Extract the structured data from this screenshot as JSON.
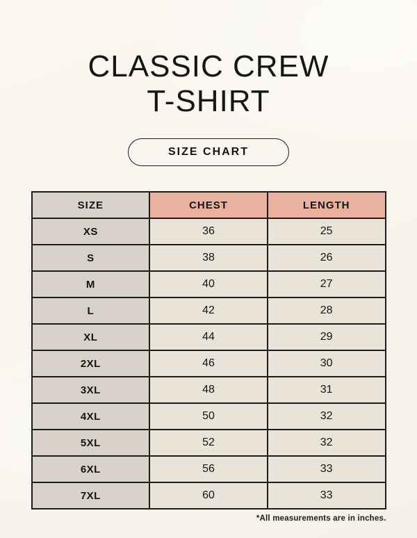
{
  "header": {
    "title_line1": "CLASSIC CREW",
    "title_line2": "T-SHIRT",
    "size_chart_button": "SIZE CHART"
  },
  "footer": {
    "note": "*All measurements are in inches."
  },
  "colors": {
    "page_bg": "#f9f5ee",
    "size_col_bg": "#d8d2cb",
    "accent_header_bg": "#ebb19f",
    "data_cell_bg": "#eae3d7",
    "table_border": "#1c1c1c",
    "text": "#141414"
  },
  "chart_data": {
    "type": "table",
    "title": "SIZE CHART",
    "columns": [
      "SIZE",
      "CHEST",
      "LENGTH"
    ],
    "rows": [
      {
        "size": "XS",
        "chest": 36,
        "length": 25
      },
      {
        "size": "S",
        "chest": 38,
        "length": 26
      },
      {
        "size": "M",
        "chest": 40,
        "length": 27
      },
      {
        "size": "L",
        "chest": 42,
        "length": 28
      },
      {
        "size": "XL",
        "chest": 44,
        "length": 29
      },
      {
        "size": "2XL",
        "chest": 46,
        "length": 30
      },
      {
        "size": "3XL",
        "chest": 48,
        "length": 31
      },
      {
        "size": "4XL",
        "chest": 50,
        "length": 32
      },
      {
        "size": "5XL",
        "chest": 52,
        "length": 32
      },
      {
        "size": "6XL",
        "chest": 56,
        "length": 33
      },
      {
        "size": "7XL",
        "chest": 60,
        "length": 33
      }
    ]
  }
}
